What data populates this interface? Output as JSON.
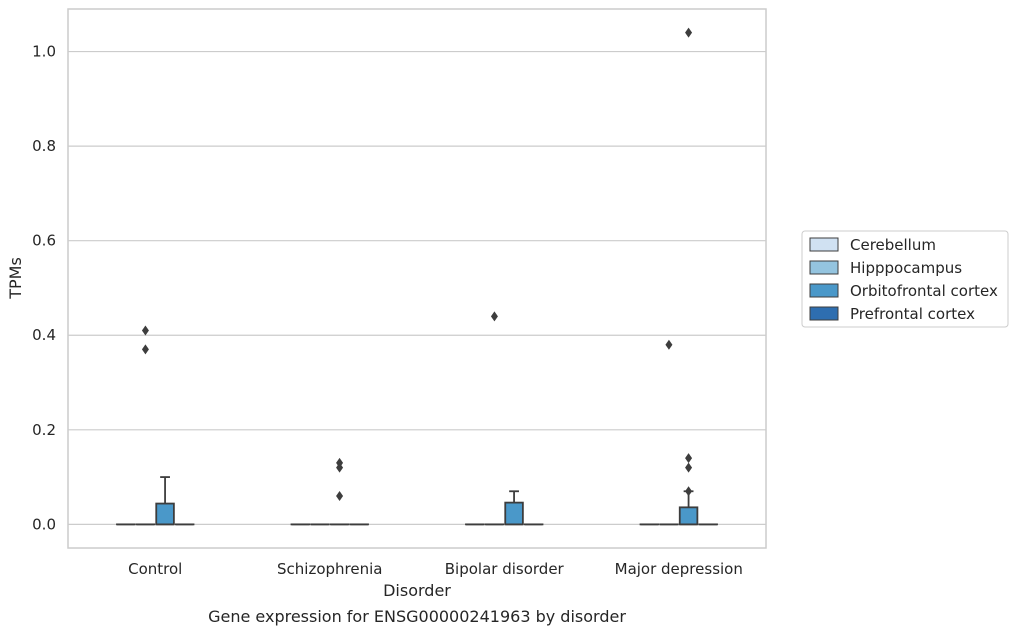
{
  "chart_data": {
    "type": "box",
    "title": "Gene expression for ENSG00000241963 by disorder",
    "xlabel": "Disorder",
    "ylabel": "TPMs",
    "ylim": [
      -0.05,
      1.09
    ],
    "yticks": [
      0.0,
      0.2,
      0.4,
      0.6,
      0.8,
      1.0
    ],
    "ytick_labels": [
      "0.0",
      "0.2",
      "0.4",
      "0.6",
      "0.8",
      "1.0"
    ],
    "grid": true,
    "legend_position": "right",
    "categories": [
      "Control",
      "Schizophrenia",
      "Bipolar disorder",
      "Major depression"
    ],
    "series": [
      {
        "name": "Cerebellum",
        "color": "#d0e1f2",
        "boxes": [
          {
            "min": 0,
            "q1": 0,
            "median": 0,
            "q3": 0,
            "max": 0,
            "outliers": []
          },
          {
            "min": 0,
            "q1": 0,
            "median": 0,
            "q3": 0,
            "max": 0,
            "outliers": []
          },
          {
            "min": 0,
            "q1": 0,
            "median": 0,
            "q3": 0,
            "max": 0,
            "outliers": []
          },
          {
            "min": 0,
            "q1": 0,
            "median": 0,
            "q3": 0,
            "max": 0,
            "outliers": []
          }
        ]
      },
      {
        "name": "Hipppocampus",
        "color": "#94c4df",
        "boxes": [
          {
            "min": 0,
            "q1": 0,
            "median": 0,
            "q3": 0,
            "max": 0,
            "outliers": []
          },
          {
            "min": 0,
            "q1": 0,
            "median": 0,
            "q3": 0,
            "max": 0,
            "outliers": []
          },
          {
            "min": 0,
            "q1": 0,
            "median": 0,
            "q3": 0,
            "max": 0,
            "outliers": [
              0.44
            ]
          },
          {
            "min": 0,
            "q1": 0,
            "median": 0,
            "q3": 0,
            "max": 0,
            "outliers": [
              0.38
            ]
          }
        ]
      },
      {
        "name": "Orbitofrontal cortex",
        "color": "#4a98c9",
        "boxes": [
          {
            "min": 0,
            "q1": 0,
            "median": 0,
            "q3": 0.044,
            "max": 0.1,
            "outliers": []
          },
          {
            "min": 0,
            "q1": 0,
            "median": 0,
            "q3": 0,
            "max": 0,
            "outliers": [
              0.13,
              0.12,
              0.06
            ]
          },
          {
            "min": 0,
            "q1": 0,
            "median": 0,
            "q3": 0.046,
            "max": 0.07,
            "outliers": []
          },
          {
            "min": 0,
            "q1": 0,
            "median": 0,
            "q3": 0.036,
            "max": 0.07,
            "outliers": [
              1.04,
              0.14,
              0.12,
              0.07
            ]
          }
        ]
      },
      {
        "name": "Prefrontal cortex",
        "color": "#2e6eb0",
        "boxes": [
          {
            "min": 0,
            "q1": 0,
            "median": 0,
            "q3": 0,
            "max": 0,
            "outliers": []
          },
          {
            "min": 0,
            "q1": 0,
            "median": 0,
            "q3": 0,
            "max": 0,
            "outliers": []
          },
          {
            "min": 0,
            "q1": 0,
            "median": 0,
            "q3": 0,
            "max": 0,
            "outliers": []
          },
          {
            "min": 0,
            "q1": 0,
            "median": 0,
            "q3": 0,
            "max": 0,
            "outliers": []
          }
        ]
      }
    ],
    "extra_outliers": [
      {
        "category": "Control",
        "series": "Hipppocampus",
        "value": 0.41
      },
      {
        "category": "Control",
        "series": "Hipppocampus",
        "value": 0.37
      }
    ]
  }
}
